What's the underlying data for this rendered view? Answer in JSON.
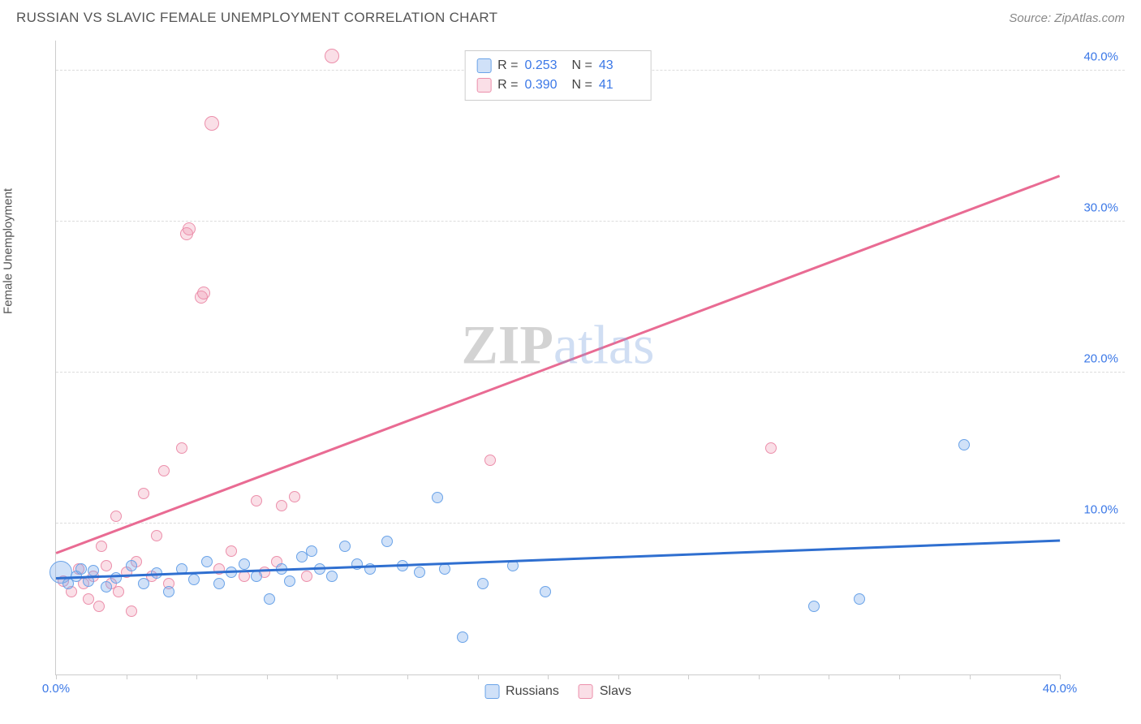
{
  "header": {
    "title": "RUSSIAN VS SLAVIC FEMALE UNEMPLOYMENT CORRELATION CHART",
    "source_prefix": "Source: ",
    "source_link": "ZipAtlas.com"
  },
  "chart": {
    "type": "scatter",
    "ylabel": "Female Unemployment",
    "watermark_a": "ZIP",
    "watermark_b": "atlas",
    "xlim": [
      0,
      40
    ],
    "ylim": [
      0,
      42
    ],
    "xtick_positions": [
      0,
      2.8,
      5.6,
      8.4,
      11.2,
      14,
      16.8,
      19.6,
      22.4,
      25.2,
      28,
      30.8,
      33.6,
      36.4,
      40
    ],
    "xtick_labels": {
      "0": "0.0%",
      "40": "40.0%"
    },
    "ytick_positions": [
      10,
      20,
      30,
      40
    ],
    "ytick_labels": {
      "10": "10.0%",
      "20": "20.0%",
      "30": "30.0%",
      "40": "40.0%"
    },
    "ytick_color": "#3b78e7",
    "xtick_color_special": "#3b78e7",
    "grid_color": "#dddddd",
    "background_color": "#ffffff",
    "axis_color": "#cccccc",
    "title_fontsize": 17,
    "label_fontsize": 15,
    "series": {
      "russians": {
        "label": "Russians",
        "color_fill": "rgba(120,170,235,0.35)",
        "color_stroke": "#6aa3e8",
        "trend_color": "#2f6fd0",
        "trend": {
          "x1": 0,
          "y1": 6.3,
          "x2": 40,
          "y2": 8.8
        },
        "corr_r": "0.253",
        "corr_n": "43",
        "points": [
          [
            0.2,
            6.8,
            28
          ],
          [
            0.5,
            6.0,
            14
          ],
          [
            0.8,
            6.5,
            14
          ],
          [
            1.0,
            7.0,
            14
          ],
          [
            1.3,
            6.2,
            14
          ],
          [
            1.5,
            6.9,
            14
          ],
          [
            2.0,
            5.8,
            14
          ],
          [
            2.4,
            6.4,
            14
          ],
          [
            3.0,
            7.2,
            14
          ],
          [
            3.5,
            6.0,
            14
          ],
          [
            4.0,
            6.7,
            14
          ],
          [
            4.5,
            5.5,
            14
          ],
          [
            5.0,
            7.0,
            14
          ],
          [
            5.5,
            6.3,
            14
          ],
          [
            6.0,
            7.5,
            14
          ],
          [
            6.5,
            6.0,
            14
          ],
          [
            7.0,
            6.8,
            14
          ],
          [
            7.5,
            7.3,
            14
          ],
          [
            8.0,
            6.5,
            14
          ],
          [
            8.5,
            5.0,
            14
          ],
          [
            9.0,
            7.0,
            14
          ],
          [
            9.3,
            6.2,
            14
          ],
          [
            9.8,
            7.8,
            14
          ],
          [
            10.2,
            8.2,
            14
          ],
          [
            10.5,
            7.0,
            14
          ],
          [
            11.0,
            6.5,
            14
          ],
          [
            11.5,
            8.5,
            14
          ],
          [
            12.0,
            7.3,
            14
          ],
          [
            12.5,
            7.0,
            14
          ],
          [
            13.2,
            8.8,
            14
          ],
          [
            13.8,
            7.2,
            14
          ],
          [
            14.5,
            6.8,
            14
          ],
          [
            15.2,
            11.7,
            14
          ],
          [
            15.5,
            7.0,
            14
          ],
          [
            16.2,
            2.5,
            14
          ],
          [
            17.0,
            6.0,
            14
          ],
          [
            18.2,
            7.2,
            14
          ],
          [
            19.5,
            5.5,
            14
          ],
          [
            30.2,
            4.5,
            14
          ],
          [
            32.0,
            5.0,
            14
          ],
          [
            36.2,
            15.2,
            14
          ]
        ]
      },
      "slavs": {
        "label": "Slavs",
        "color_fill": "rgba(240,150,175,0.30)",
        "color_stroke": "#ec8fab",
        "trend_color": "#e96b93",
        "trend": {
          "x1": 0,
          "y1": 8.0,
          "x2": 40,
          "y2": 33.0
        },
        "corr_r": "0.390",
        "corr_n": "41",
        "points": [
          [
            0.3,
            6.2,
            14
          ],
          [
            0.6,
            5.5,
            14
          ],
          [
            0.9,
            7.0,
            14
          ],
          [
            1.1,
            6.0,
            14
          ],
          [
            1.3,
            5.0,
            14
          ],
          [
            1.5,
            6.5,
            14
          ],
          [
            1.7,
            4.5,
            14
          ],
          [
            1.8,
            8.5,
            14
          ],
          [
            2.0,
            7.2,
            14
          ],
          [
            2.2,
            6.0,
            14
          ],
          [
            2.4,
            10.5,
            14
          ],
          [
            2.5,
            5.5,
            14
          ],
          [
            2.8,
            6.8,
            14
          ],
          [
            3.0,
            4.2,
            14
          ],
          [
            3.2,
            7.5,
            14
          ],
          [
            3.5,
            12.0,
            14
          ],
          [
            3.8,
            6.5,
            14
          ],
          [
            4.0,
            9.2,
            14
          ],
          [
            4.3,
            13.5,
            14
          ],
          [
            4.5,
            6.0,
            14
          ],
          [
            5.0,
            15.0,
            14
          ],
          [
            5.2,
            29.2,
            16
          ],
          [
            5.3,
            29.5,
            16
          ],
          [
            5.8,
            25.0,
            16
          ],
          [
            5.9,
            25.3,
            16
          ],
          [
            6.2,
            36.5,
            18
          ],
          [
            6.5,
            7.0,
            14
          ],
          [
            7.0,
            8.2,
            14
          ],
          [
            7.5,
            6.5,
            14
          ],
          [
            8.0,
            11.5,
            14
          ],
          [
            8.3,
            6.8,
            14
          ],
          [
            8.8,
            7.5,
            14
          ],
          [
            9.0,
            11.2,
            14
          ],
          [
            9.5,
            11.8,
            14
          ],
          [
            10.0,
            6.5,
            14
          ],
          [
            11.0,
            41.0,
            18
          ],
          [
            17.3,
            14.2,
            14
          ],
          [
            28.5,
            15.0,
            14
          ]
        ]
      }
    },
    "legend_top": {
      "r_label": "R =",
      "n_label": "N ="
    }
  }
}
